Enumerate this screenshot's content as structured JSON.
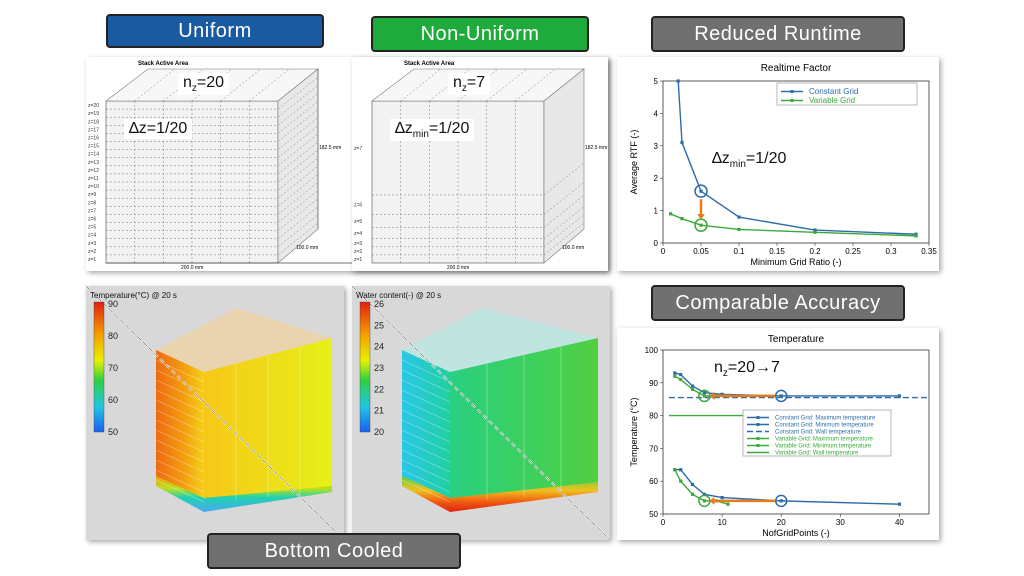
{
  "labels": {
    "uniform": "Uniform",
    "nonuniform": "Non-Uniform",
    "runtime": "Reduced Runtime",
    "accuracy": "Comparable Accuracy",
    "bottom": "Bottom Cooled"
  },
  "colors": {
    "blue_label": "#1a5aa0",
    "green_label": "#1faa3c",
    "grey_label": "#707070",
    "constant": "#2e6ca8",
    "variable": "#3aaa3a",
    "arrow": "#e87a1a"
  },
  "uniform_panel": {
    "title": "Stack Active Area",
    "nz_base": "n",
    "nz_sub": "z",
    "nz_val": "=20",
    "dz_text": "∆z=1/20",
    "z_labels": [
      "z=20",
      "z=19",
      "z=18",
      "z=17",
      "z=16",
      "z=15",
      "z=14",
      "z=13",
      "z=12",
      "z=11",
      "z=10",
      "z=9",
      "z=8",
      "z=7",
      "z=6",
      "z=5",
      "z=4",
      "z=3",
      "z=2",
      "z=1"
    ],
    "height_dim": "182.5 mm",
    "depth_dim": "100.0 mm",
    "width_dim": "200.0 mm"
  },
  "nonuniform_panel": {
    "title": "Stack Active Area",
    "nz_base": "n",
    "nz_sub": "z",
    "nz_val": "=7",
    "dz_base": "∆z",
    "dz_sub": "min",
    "dz_val": "=1/20",
    "z_labels": [
      "z=7",
      "z=6",
      "z=5",
      "z=4",
      "z=3",
      "z=2",
      "z=1"
    ],
    "height_dim": "182.5 mm",
    "depth_dim": "100.0 mm",
    "width_dim": "200.0 mm"
  },
  "temp_panel": {
    "title": "Temperature(°C) @ 20 s",
    "ticks": [
      "90",
      "80",
      "70",
      "60",
      "50"
    ]
  },
  "water_panel": {
    "title": "Water content(-) @ 20 s",
    "ticks": [
      "26",
      "25",
      "24",
      "23",
      "22",
      "21",
      "20"
    ]
  },
  "rtf_annotation": {
    "base": "∆z",
    "sub": "min",
    "val": "=1/20"
  },
  "temp_annotation": {
    "base": "n",
    "sub": "z",
    "val": "=20→7"
  },
  "chart_data": [
    {
      "type": "line",
      "title": "Realtime Factor",
      "xlabel": "Minimum Grid Ratio (-)",
      "ylabel": "Average RTF (-)",
      "xlim": [
        0,
        0.35
      ],
      "ylim": [
        0,
        5
      ],
      "xticks": [
        "0",
        "0.05",
        "0.1",
        "0.15",
        "0.2",
        "0.25",
        "0.3",
        "0.35"
      ],
      "yticks": [
        "0",
        "1",
        "2",
        "3",
        "4",
        "5"
      ],
      "legend": "top-right",
      "series": [
        {
          "name": "Constant Grid",
          "x": [
            0.02,
            0.025,
            0.05,
            0.1,
            0.2,
            0.333
          ],
          "y": [
            5.0,
            3.1,
            1.6,
            0.8,
            0.4,
            0.27
          ]
        },
        {
          "name": "Variable Grid",
          "x": [
            0.01,
            0.025,
            0.05,
            0.1,
            0.2,
            0.333
          ],
          "y": [
            0.9,
            0.75,
            0.55,
            0.42,
            0.33,
            0.22
          ]
        }
      ]
    },
    {
      "type": "line",
      "title": "Temperature",
      "xlabel": "NofGridPoints (-)",
      "ylabel": "Temperature (°C)",
      "xlim": [
        0,
        45
      ],
      "ylim": [
        50,
        100
      ],
      "xticks": [
        "0",
        "10",
        "20",
        "30",
        "40"
      ],
      "yticks": [
        "50",
        "60",
        "70",
        "80",
        "90",
        "100"
      ],
      "legend": "center-right",
      "series": [
        {
          "name": "Constant Grid: Maximum temperature",
          "x": [
            2,
            3,
            5,
            7,
            10,
            20,
            40
          ],
          "y": [
            93,
            92.5,
            89,
            87,
            86.5,
            86,
            86
          ]
        },
        {
          "name": "Constant Grid: Minimum temperature",
          "x": [
            2,
            3,
            5,
            7,
            10,
            20,
            40
          ],
          "y": [
            63.5,
            63.5,
            59,
            56,
            55,
            54,
            53
          ]
        },
        {
          "name": "Constant Grid: Wall temperature",
          "x": [
            1,
            45
          ],
          "y": [
            85.5,
            85.5
          ]
        },
        {
          "name": "Variable Grid: Maximum temperature",
          "x": [
            2,
            3,
            5,
            7,
            9,
            11
          ],
          "y": [
            92,
            91,
            88,
            86,
            86,
            86
          ]
        },
        {
          "name": "Variable Grid: Minimum temperature",
          "x": [
            2,
            3,
            5,
            7,
            9,
            11
          ],
          "y": [
            63.5,
            60,
            56,
            54,
            54,
            53
          ]
        },
        {
          "name": "Variable Grid: Wall temperature",
          "x": [
            1,
            20
          ],
          "y": [
            80,
            80
          ]
        }
      ]
    }
  ]
}
